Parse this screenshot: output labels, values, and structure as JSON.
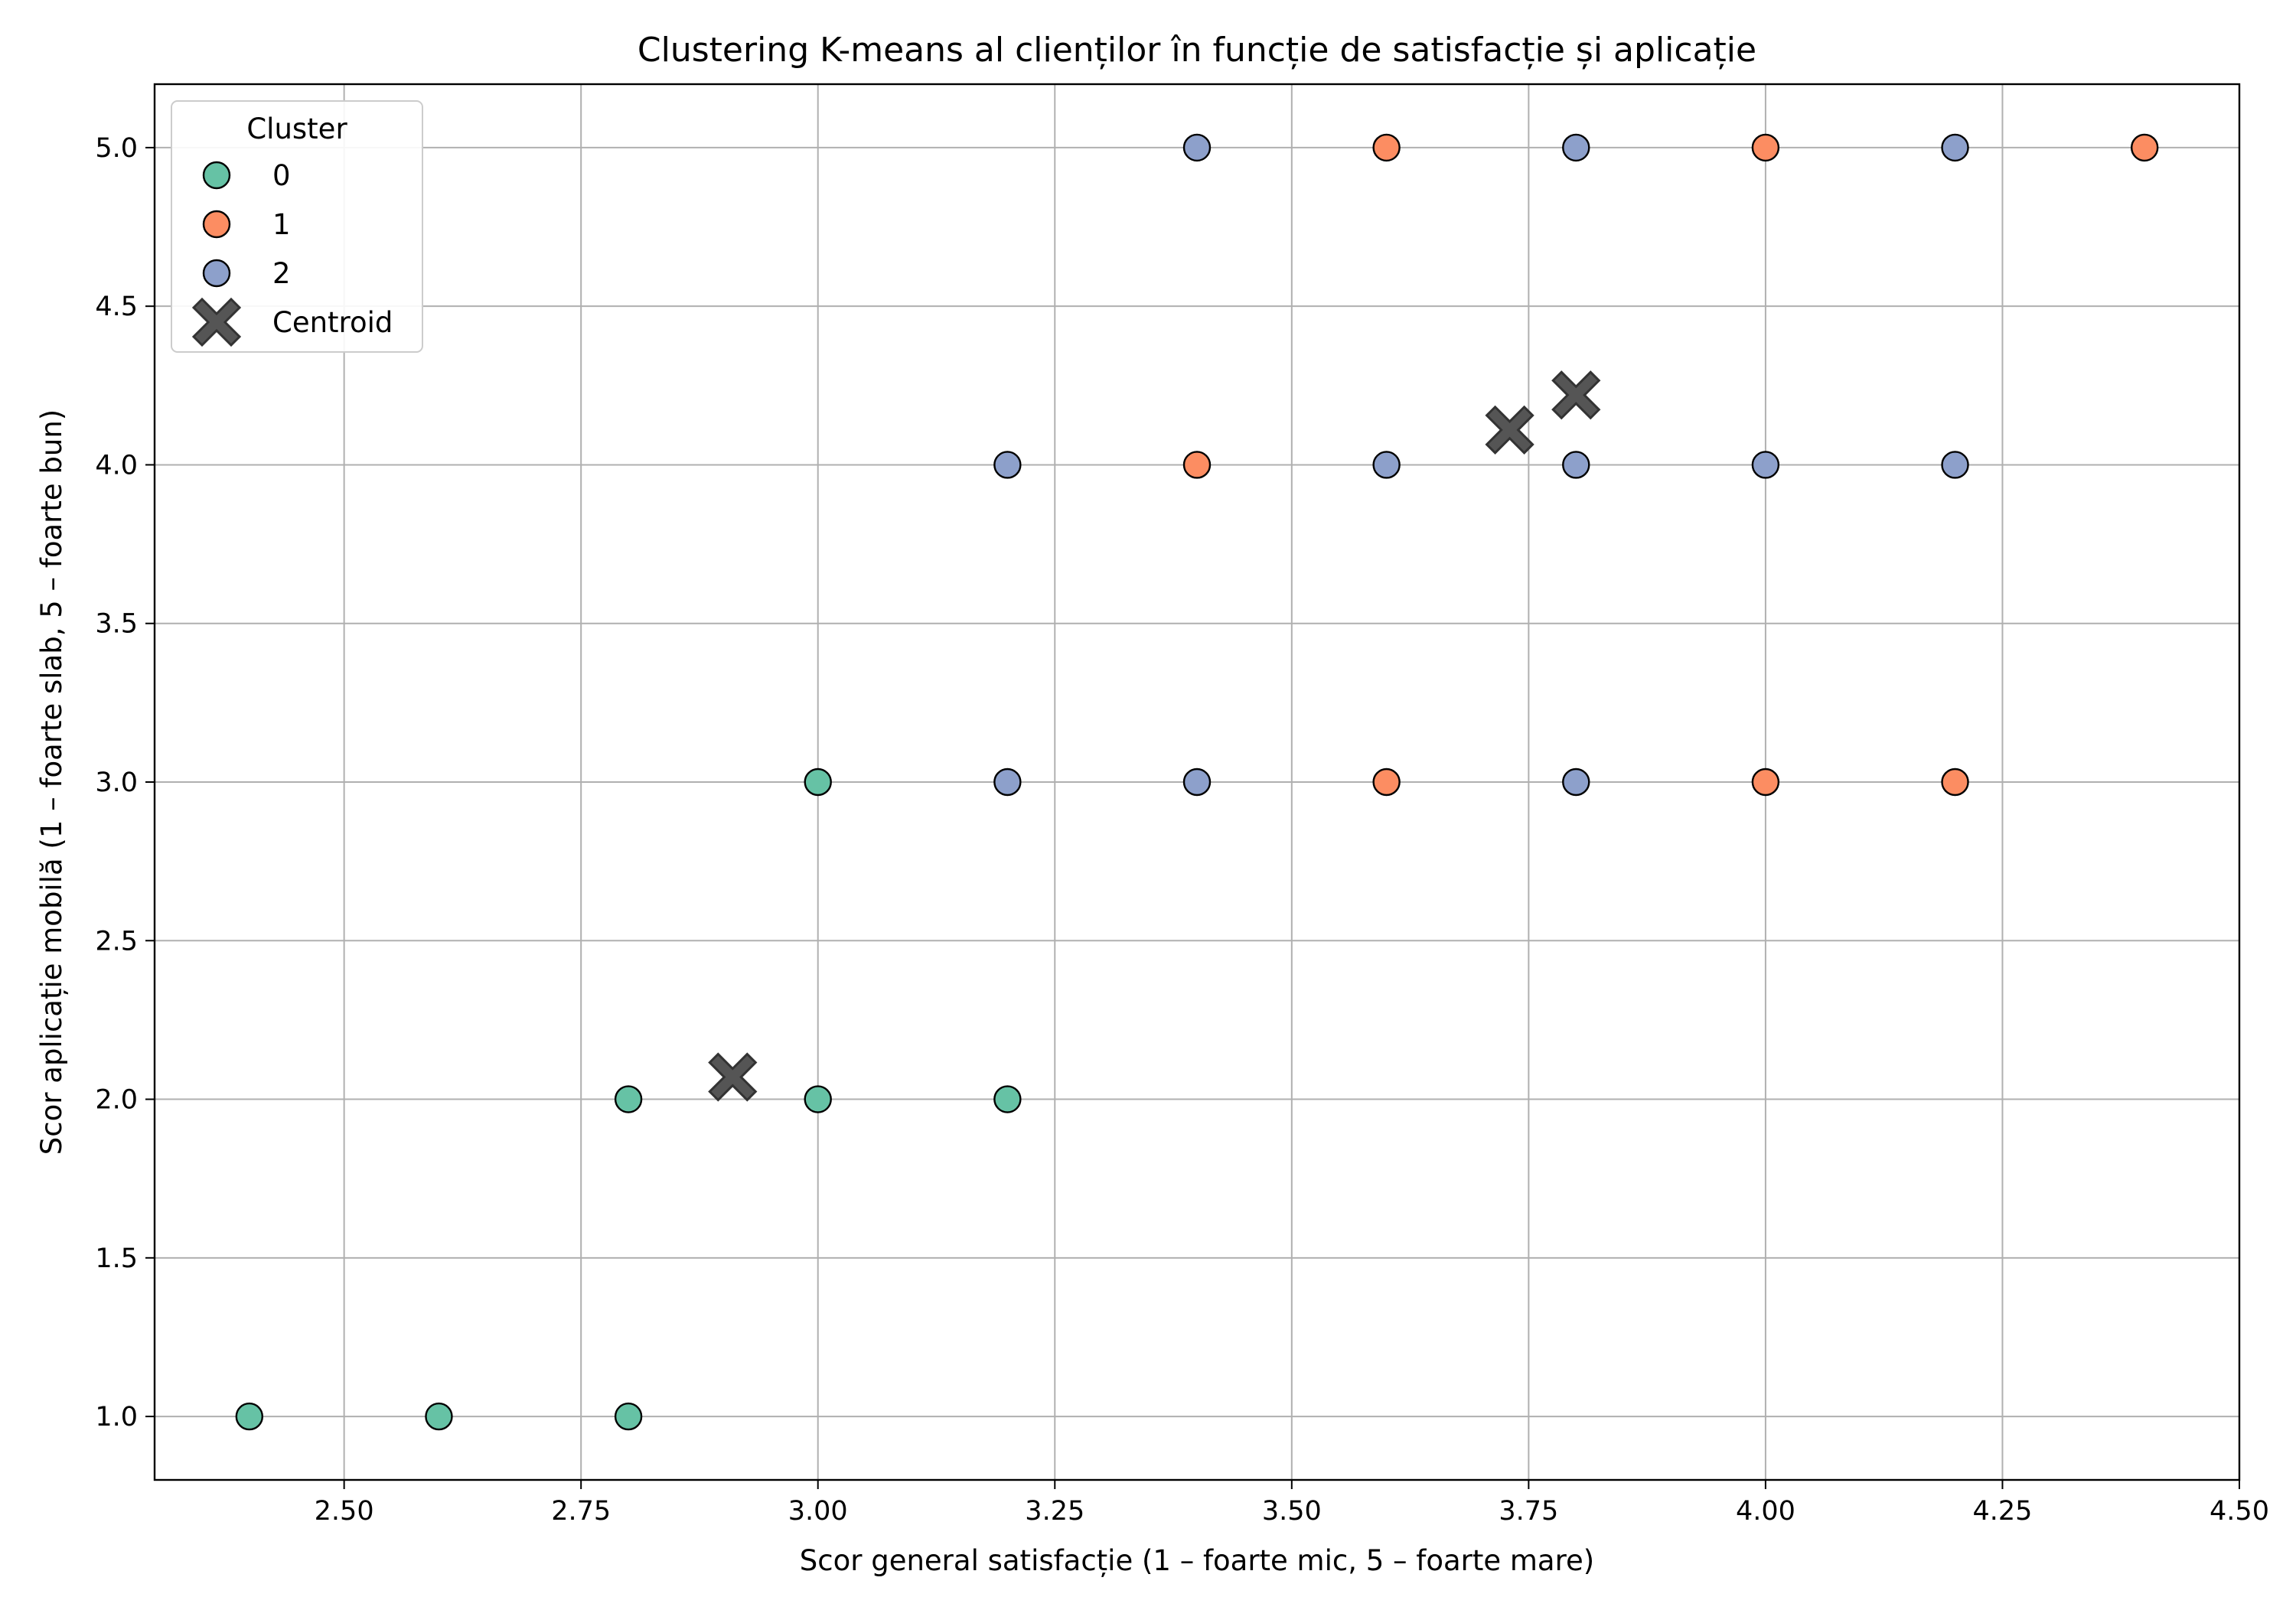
{
  "chart_data": {
    "type": "scatter",
    "title": "Clustering K-means al clienților în funcție de satisfacție și aplicație",
    "xlabel": "Scor general satisfacție (1 – foarte mic, 5 – foarte mare)",
    "ylabel": "Scor aplicație mobilă (1 – foarte slab, 5 – foarte bun)",
    "xlim": [
      2.3,
      4.5
    ],
    "ylim": [
      0.8,
      5.2
    ],
    "xticks": [
      2.5,
      2.75,
      3.0,
      3.25,
      3.5,
      3.75,
      4.0,
      4.25,
      4.5
    ],
    "xtick_labels": [
      "2.50",
      "2.75",
      "3.00",
      "3.25",
      "3.50",
      "3.75",
      "4.00",
      "4.25",
      "4.50"
    ],
    "yticks": [
      1.0,
      1.5,
      2.0,
      2.5,
      3.0,
      3.5,
      4.0,
      4.5,
      5.0
    ],
    "ytick_labels": [
      "1.0",
      "1.5",
      "2.0",
      "2.5",
      "3.0",
      "3.5",
      "4.0",
      "4.5",
      "5.0"
    ],
    "grid": true,
    "legend": {
      "title": "Cluster",
      "placement": "top-left",
      "centroid_label": "Centroid"
    },
    "series": [
      {
        "name": "0",
        "color": "#66c2a5",
        "points": [
          [
            2.4,
            1.0
          ],
          [
            2.6,
            1.0
          ],
          [
            2.8,
            1.0
          ],
          [
            2.8,
            2.0
          ],
          [
            3.0,
            2.0
          ],
          [
            3.2,
            2.0
          ],
          [
            3.0,
            3.0
          ]
        ]
      },
      {
        "name": "1",
        "color": "#fc8d62",
        "points": [
          [
            3.6,
            5.0
          ],
          [
            4.0,
            5.0
          ],
          [
            4.4,
            5.0
          ],
          [
            3.4,
            4.0
          ],
          [
            3.6,
            3.0
          ],
          [
            4.0,
            3.0
          ],
          [
            4.2,
            3.0
          ]
        ]
      },
      {
        "name": "2",
        "color": "#8da0cb",
        "points": [
          [
            3.4,
            5.0
          ],
          [
            3.8,
            5.0
          ],
          [
            4.2,
            5.0
          ],
          [
            3.2,
            4.0
          ],
          [
            3.6,
            4.0
          ],
          [
            3.8,
            4.0
          ],
          [
            4.0,
            4.0
          ],
          [
            4.2,
            4.0
          ],
          [
            3.2,
            3.0
          ],
          [
            3.4,
            3.0
          ],
          [
            3.8,
            3.0
          ]
        ]
      }
    ],
    "centroids": {
      "name": "Centroid",
      "color": "#555555",
      "points": [
        [
          2.91,
          2.07
        ],
        [
          3.73,
          4.11
        ],
        [
          3.8,
          4.22
        ]
      ]
    }
  }
}
